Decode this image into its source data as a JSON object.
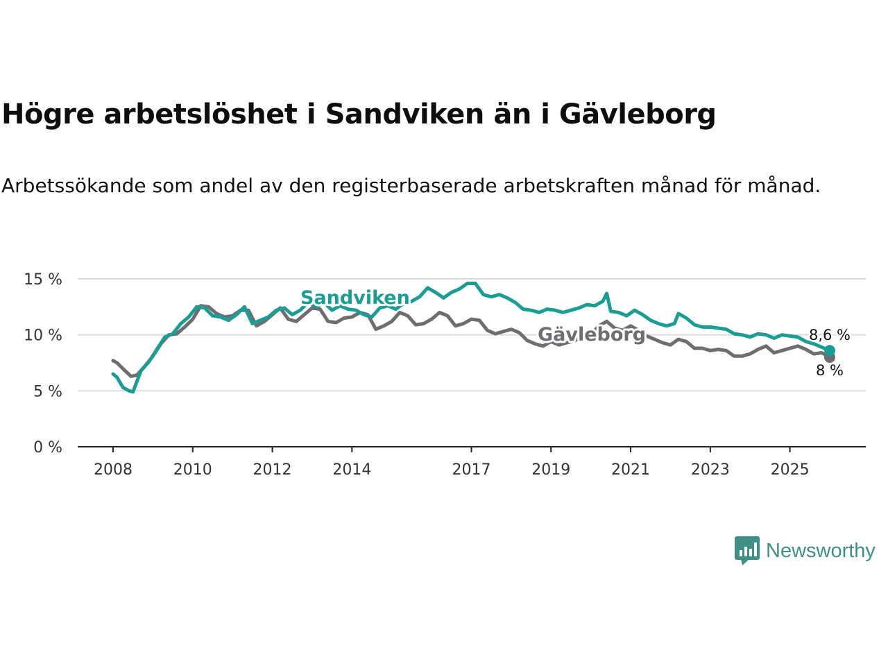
{
  "title": "Högre arbetslöshet i Sandviken än i Gävleborg",
  "subtitle": "Arbetssökande som andel av den registerbaserade arbetskraften månad för månad.",
  "brand": "Newsworthy",
  "colors": {
    "sandviken": "#1a9d92",
    "gavleborg": "#6e6d72",
    "grid": "#dcdcdc",
    "axis": "#222222",
    "brand": "#3e9087"
  },
  "chart_data": {
    "type": "line",
    "title": "Högre arbetslöshet i Sandviken än i Gävleborg",
    "xlabel": "",
    "ylabel": "",
    "x_range": [
      2008,
      2026.2
    ],
    "ylim": [
      0,
      15
    ],
    "y_ticks": [
      0,
      5,
      10,
      15
    ],
    "y_tick_labels": [
      "0 %",
      "5 %",
      "10 %",
      "15 %"
    ],
    "x_ticks": [
      2008,
      2010,
      2012,
      2014,
      2017,
      2019,
      2021,
      2023,
      2025
    ],
    "x_tick_labels": [
      "2008",
      "2010",
      "2012",
      "2014",
      "2017",
      "2019",
      "2021",
      "2023",
      "2025"
    ],
    "grid": true,
    "series": [
      {
        "name": "Sandviken",
        "label": "Sandviken",
        "end_label": "8,6 %",
        "points": [
          [
            2008.0,
            6.5
          ],
          [
            2008.1,
            6.2
          ],
          [
            2008.25,
            5.3
          ],
          [
            2008.4,
            5.0
          ],
          [
            2008.5,
            4.9
          ],
          [
            2008.7,
            6.8
          ],
          [
            2008.9,
            7.6
          ],
          [
            2009.1,
            8.7
          ],
          [
            2009.3,
            9.8
          ],
          [
            2009.5,
            10.1
          ],
          [
            2009.7,
            11.0
          ],
          [
            2009.9,
            11.6
          ],
          [
            2010.1,
            12.5
          ],
          [
            2010.3,
            12.4
          ],
          [
            2010.5,
            11.7
          ],
          [
            2010.7,
            11.6
          ],
          [
            2010.9,
            11.3
          ],
          [
            2011.1,
            11.8
          ],
          [
            2011.3,
            12.5
          ],
          [
            2011.5,
            11.0
          ],
          [
            2011.7,
            11.3
          ],
          [
            2011.9,
            11.6
          ],
          [
            2012.1,
            12.2
          ],
          [
            2012.3,
            12.4
          ],
          [
            2012.5,
            11.8
          ],
          [
            2012.7,
            12.2
          ],
          [
            2012.9,
            12.9
          ],
          [
            2013.1,
            12.5
          ],
          [
            2013.3,
            12.9
          ],
          [
            2013.5,
            12.2
          ],
          [
            2013.7,
            12.6
          ],
          [
            2013.9,
            12.3
          ],
          [
            2014.1,
            12.2
          ],
          [
            2014.3,
            11.8
          ],
          [
            2014.5,
            11.6
          ],
          [
            2014.7,
            12.4
          ],
          [
            2014.9,
            12.6
          ],
          [
            2015.1,
            12.3
          ],
          [
            2015.3,
            12.8
          ],
          [
            2015.5,
            13.0
          ],
          [
            2015.7,
            13.4
          ],
          [
            2015.9,
            14.2
          ],
          [
            2016.1,
            13.8
          ],
          [
            2016.3,
            13.3
          ],
          [
            2016.5,
            13.8
          ],
          [
            2016.7,
            14.1
          ],
          [
            2016.9,
            14.6
          ],
          [
            2017.1,
            14.6
          ],
          [
            2017.3,
            13.6
          ],
          [
            2017.5,
            13.4
          ],
          [
            2017.7,
            13.6
          ],
          [
            2017.9,
            13.3
          ],
          [
            2018.1,
            12.9
          ],
          [
            2018.3,
            12.3
          ],
          [
            2018.5,
            12.2
          ],
          [
            2018.7,
            12.0
          ],
          [
            2018.9,
            12.3
          ],
          [
            2019.1,
            12.2
          ],
          [
            2019.3,
            12.0
          ],
          [
            2019.5,
            12.2
          ],
          [
            2019.7,
            12.4
          ],
          [
            2019.9,
            12.7
          ],
          [
            2020.1,
            12.6
          ],
          [
            2020.3,
            13.0
          ],
          [
            2020.4,
            13.7
          ],
          [
            2020.5,
            12.1
          ],
          [
            2020.7,
            12.0
          ],
          [
            2020.9,
            11.7
          ],
          [
            2021.1,
            12.2
          ],
          [
            2021.3,
            11.8
          ],
          [
            2021.5,
            11.3
          ],
          [
            2021.7,
            11.0
          ],
          [
            2021.9,
            10.8
          ],
          [
            2022.1,
            11.0
          ],
          [
            2022.2,
            11.9
          ],
          [
            2022.4,
            11.5
          ],
          [
            2022.6,
            10.9
          ],
          [
            2022.8,
            10.7
          ],
          [
            2023.0,
            10.7
          ],
          [
            2023.2,
            10.6
          ],
          [
            2023.4,
            10.5
          ],
          [
            2023.6,
            10.1
          ],
          [
            2023.8,
            10.0
          ],
          [
            2024.0,
            9.8
          ],
          [
            2024.2,
            10.1
          ],
          [
            2024.4,
            10.0
          ],
          [
            2024.6,
            9.7
          ],
          [
            2024.8,
            10.0
          ],
          [
            2025.0,
            9.9
          ],
          [
            2025.2,
            9.8
          ],
          [
            2025.4,
            9.4
          ],
          [
            2025.6,
            9.2
          ],
          [
            2025.8,
            8.9
          ],
          [
            2026.0,
            8.6
          ]
        ]
      },
      {
        "name": "Gävleborg",
        "label": "Gävleborg",
        "end_label": "8 %",
        "points": [
          [
            2008.0,
            7.7
          ],
          [
            2008.1,
            7.5
          ],
          [
            2008.3,
            6.8
          ],
          [
            2008.45,
            6.3
          ],
          [
            2008.6,
            6.4
          ],
          [
            2008.8,
            7.2
          ],
          [
            2009.0,
            8.1
          ],
          [
            2009.2,
            9.2
          ],
          [
            2009.4,
            10.0
          ],
          [
            2009.6,
            10.1
          ],
          [
            2009.8,
            10.7
          ],
          [
            2010.0,
            11.4
          ],
          [
            2010.2,
            12.6
          ],
          [
            2010.4,
            12.5
          ],
          [
            2010.6,
            11.9
          ],
          [
            2010.8,
            11.6
          ],
          [
            2011.0,
            11.7
          ],
          [
            2011.2,
            12.2
          ],
          [
            2011.4,
            12.2
          ],
          [
            2011.6,
            10.8
          ],
          [
            2011.8,
            11.2
          ],
          [
            2012.0,
            11.8
          ],
          [
            2012.2,
            12.4
          ],
          [
            2012.4,
            11.4
          ],
          [
            2012.6,
            11.2
          ],
          [
            2012.8,
            11.8
          ],
          [
            2013.0,
            12.4
          ],
          [
            2013.2,
            12.3
          ],
          [
            2013.4,
            11.2
          ],
          [
            2013.6,
            11.1
          ],
          [
            2013.8,
            11.5
          ],
          [
            2014.0,
            11.6
          ],
          [
            2014.2,
            12.0
          ],
          [
            2014.4,
            11.8
          ],
          [
            2014.6,
            10.5
          ],
          [
            2014.8,
            10.8
          ],
          [
            2015.0,
            11.2
          ],
          [
            2015.2,
            12.0
          ],
          [
            2015.4,
            11.7
          ],
          [
            2015.6,
            10.9
          ],
          [
            2015.8,
            11.0
          ],
          [
            2016.0,
            11.4
          ],
          [
            2016.2,
            12.0
          ],
          [
            2016.4,
            11.7
          ],
          [
            2016.6,
            10.8
          ],
          [
            2016.8,
            11.0
          ],
          [
            2017.0,
            11.4
          ],
          [
            2017.2,
            11.3
          ],
          [
            2017.4,
            10.4
          ],
          [
            2017.6,
            10.1
          ],
          [
            2017.8,
            10.3
          ],
          [
            2018.0,
            10.5
          ],
          [
            2018.2,
            10.2
          ],
          [
            2018.4,
            9.5
          ],
          [
            2018.6,
            9.2
          ],
          [
            2018.8,
            9.0
          ],
          [
            2019.0,
            9.4
          ],
          [
            2019.2,
            9.1
          ],
          [
            2019.4,
            9.3
          ],
          [
            2019.6,
            9.5
          ],
          [
            2019.8,
            9.8
          ],
          [
            2020.0,
            10.0
          ],
          [
            2020.2,
            10.8
          ],
          [
            2020.4,
            11.2
          ],
          [
            2020.6,
            10.6
          ],
          [
            2020.8,
            10.4
          ],
          [
            2021.0,
            10.8
          ],
          [
            2021.2,
            10.4
          ],
          [
            2021.4,
            9.9
          ],
          [
            2021.6,
            9.6
          ],
          [
            2021.8,
            9.3
          ],
          [
            2022.0,
            9.1
          ],
          [
            2022.2,
            9.6
          ],
          [
            2022.4,
            9.4
          ],
          [
            2022.6,
            8.8
          ],
          [
            2022.8,
            8.8
          ],
          [
            2023.0,
            8.6
          ],
          [
            2023.2,
            8.7
          ],
          [
            2023.4,
            8.6
          ],
          [
            2023.6,
            8.1
          ],
          [
            2023.8,
            8.1
          ],
          [
            2024.0,
            8.3
          ],
          [
            2024.2,
            8.7
          ],
          [
            2024.4,
            9.0
          ],
          [
            2024.6,
            8.4
          ],
          [
            2024.8,
            8.6
          ],
          [
            2025.0,
            8.8
          ],
          [
            2025.2,
            9.0
          ],
          [
            2025.4,
            8.7
          ],
          [
            2025.6,
            8.3
          ],
          [
            2025.8,
            8.4
          ],
          [
            2026.0,
            8.0
          ]
        ]
      }
    ]
  }
}
